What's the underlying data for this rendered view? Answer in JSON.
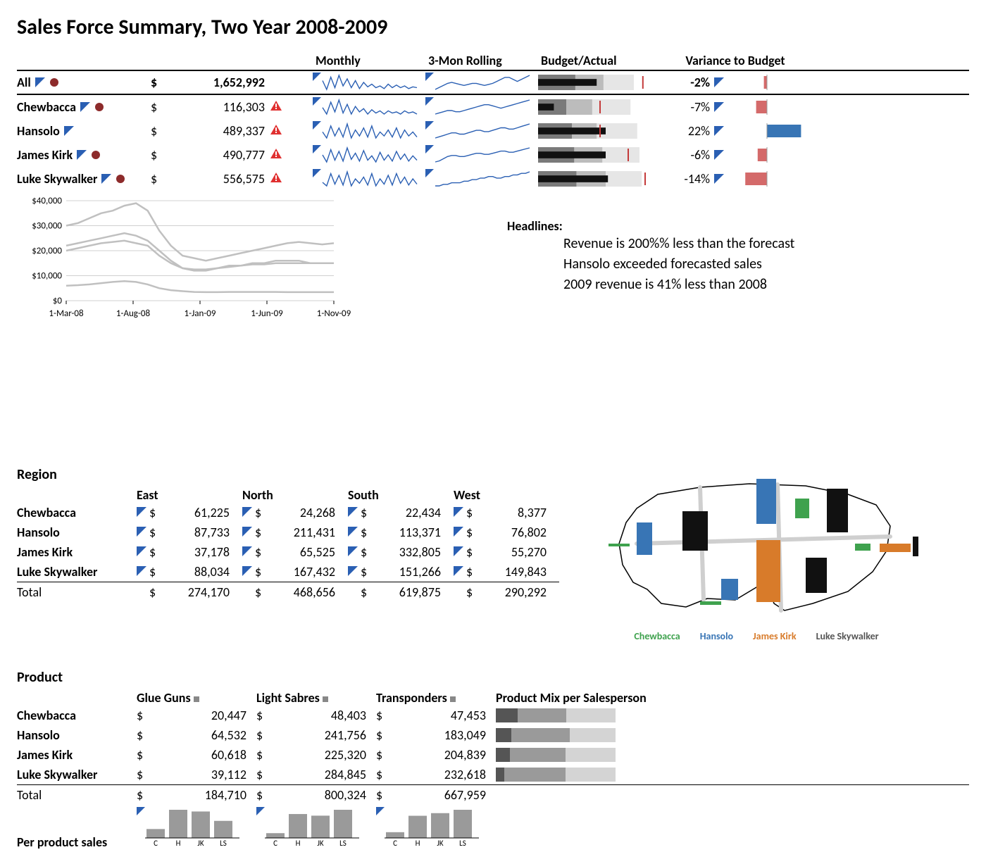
{
  "title": "Sales Force Summary, Two Year 2008-2009",
  "colors": {
    "text": "#000000",
    "bg": "#ffffff",
    "spark_line": "#2a5fb3",
    "spark_tri": "#2a5fb3",
    "warn": "#e03030",
    "bullet_bar": "#111111",
    "bullet_q1": "#7a7a7a",
    "bullet_q2": "#bcbcbc",
    "bullet_q3": "#e6e6e6",
    "bullet_target": "#c43a3a",
    "var_pos": "#3875b5",
    "var_neg": "#d46a6a",
    "line_grid": "#d0d0d0",
    "line_series": "#c0c0c0",
    "mix_dark": "#555555",
    "mix_mid": "#9a9a9a",
    "mix_light": "#d4d4d4",
    "map_chew": "#3fa24e",
    "map_han": "#3875b5",
    "map_jk": "#d87b2a",
    "map_luke": "#111111"
  },
  "summary": {
    "headers": {
      "monthly": "Monthly",
      "rolling": "3-Mon Rolling",
      "budget": "Budget/Actual",
      "variance": "Variance to Budget"
    },
    "rows": [
      {
        "name": "All",
        "amount": "1,652,992",
        "warn": false,
        "show_dot": true,
        "monthly": [
          18,
          8,
          22,
          10,
          24,
          12,
          20,
          10,
          18,
          9,
          16,
          11,
          14,
          10,
          12,
          9,
          14,
          10,
          13,
          10,
          12,
          9,
          11,
          10
        ],
        "rolling": [
          6,
          8,
          10,
          12,
          13,
          12,
          11,
          10,
          11,
          12,
          12,
          11,
          10,
          11,
          12,
          14,
          16,
          18,
          18,
          16,
          14,
          16,
          18,
          20
        ],
        "bullet": {
          "q": [
            0.33,
            0.58,
            0.85
          ],
          "bar": 0.52,
          "target": 0.93
        },
        "variance": -2
      },
      {
        "name": "Chewbacca",
        "amount": "116,303",
        "warn": true,
        "show_dot": true,
        "monthly": [
          15,
          9,
          20,
          11,
          22,
          10,
          18,
          9,
          16,
          11,
          14,
          9,
          13,
          10,
          12,
          9,
          12,
          10,
          11,
          9,
          12,
          10,
          11,
          9
        ],
        "rolling": [
          8,
          9,
          10,
          11,
          11,
          10,
          10,
          11,
          12,
          13,
          14,
          15,
          16,
          16,
          15,
          14,
          13,
          14,
          15,
          16,
          17,
          18,
          19,
          20
        ],
        "bullet": {
          "q": [
            0.25,
            0.48,
            0.82
          ],
          "bar": 0.14,
          "target": 0.55
        },
        "variance": -7
      },
      {
        "name": "Hansolo",
        "amount": "489,337",
        "warn": true,
        "show_dot": false,
        "monthly": [
          16,
          10,
          22,
          12,
          20,
          11,
          24,
          10,
          18,
          12,
          20,
          11,
          22,
          10,
          16,
          12,
          18,
          11,
          20,
          10,
          18,
          12,
          16,
          11
        ],
        "rolling": [
          7,
          8,
          9,
          10,
          11,
          11,
          10,
          10,
          11,
          12,
          13,
          13,
          12,
          12,
          13,
          14,
          15,
          15,
          14,
          14,
          15,
          16,
          17,
          18
        ],
        "bullet": {
          "q": [
            0.3,
            0.52,
            0.88
          ],
          "bar": 0.6,
          "target": 0.55
        },
        "variance": 22
      },
      {
        "name": "James Kirk",
        "amount": "490,777",
        "warn": true,
        "show_dot": true,
        "monthly": [
          17,
          9,
          23,
          11,
          21,
          10,
          25,
          12,
          19,
          10,
          22,
          11,
          16,
          9,
          20,
          11,
          17,
          10,
          21,
          12,
          18,
          10,
          16,
          11
        ],
        "rolling": [
          6,
          7,
          9,
          11,
          12,
          12,
          11,
          11,
          12,
          13,
          14,
          14,
          13,
          13,
          14,
          15,
          16,
          16,
          15,
          15,
          16,
          17,
          18,
          19
        ],
        "bullet": {
          "q": [
            0.32,
            0.57,
            0.9
          ],
          "bar": 0.6,
          "target": 0.8
        },
        "variance": -6
      },
      {
        "name": "Luke Skywalker",
        "amount": "556,575",
        "warn": true,
        "show_dot": true,
        "monthly": [
          14,
          10,
          24,
          12,
          22,
          11,
          26,
          10,
          18,
          13,
          20,
          11,
          24,
          10,
          18,
          12,
          22,
          11,
          24,
          13,
          20,
          11,
          18,
          12
        ],
        "rolling": [
          9,
          9,
          10,
          10,
          11,
          11,
          11,
          12,
          12,
          13,
          13,
          14,
          14,
          15,
          15,
          14,
          14,
          15,
          15,
          16,
          16,
          17,
          17,
          18
        ],
        "bullet": {
          "q": [
            0.34,
            0.6,
            0.92
          ],
          "bar": 0.62,
          "target": 0.95
        },
        "variance": -14
      }
    ]
  },
  "linechart": {
    "yticks": [
      "$40,000",
      "$30,000",
      "$20,000",
      "$10,000",
      "$0"
    ],
    "xticks": [
      "1-Mar-08",
      "1-Aug-08",
      "1-Jan-09",
      "1-Jun-09",
      "1-Nov-09"
    ],
    "ymax": 40000,
    "series": [
      [
        30000,
        31000,
        33000,
        35000,
        36000,
        38000,
        39000,
        36000,
        28000,
        22000,
        18000,
        17000,
        16000,
        17000,
        18000,
        19000,
        20000,
        21000,
        22000,
        23000,
        23500,
        23000,
        22500,
        23000
      ],
      [
        22000,
        23000,
        24000,
        25000,
        26000,
        27000,
        26000,
        24000,
        20000,
        16000,
        13000,
        12000,
        12000,
        13000,
        14000,
        14000,
        15000,
        15000,
        16000,
        16000,
        16000,
        15000,
        15000,
        15000
      ],
      [
        20000,
        21000,
        22000,
        23000,
        23500,
        24000,
        23000,
        22000,
        18000,
        15000,
        13000,
        12500,
        12500,
        13000,
        13500,
        14000,
        14500,
        14500,
        15000,
        15000,
        15000,
        15000,
        15000,
        15000
      ],
      [
        6000,
        6200,
        6500,
        7000,
        7500,
        7800,
        7500,
        6500,
        5000,
        4200,
        3800,
        3500,
        3400,
        3400,
        3500,
        3500,
        3500,
        3500,
        3500,
        3400,
        3400,
        3400,
        3400,
        3400
      ]
    ]
  },
  "headlines": {
    "title": "Headlines:",
    "lines": [
      "Revenue is 200%% less than the forecast",
      "Hansolo exceeded forecasted sales",
      "2009 revenue is 41% less than 2008"
    ]
  },
  "region": {
    "title": "Region",
    "cols": [
      "East",
      "North",
      "South",
      "West"
    ],
    "rows": [
      {
        "name": "Chewbacca",
        "vals": [
          "61,225",
          "24,268",
          "22,434",
          "8,377"
        ]
      },
      {
        "name": "Hansolo",
        "vals": [
          "87,733",
          "211,431",
          "113,371",
          "76,802"
        ]
      },
      {
        "name": "James Kirk",
        "vals": [
          "37,178",
          "65,525",
          "332,805",
          "55,270"
        ]
      },
      {
        "name": "Luke Skywalker",
        "vals": [
          "88,034",
          "167,432",
          "151,266",
          "149,843"
        ]
      }
    ],
    "total": {
      "name": "Total",
      "vals": [
        "274,170",
        "468,656",
        "619,875",
        "290,292"
      ]
    }
  },
  "maplegend": {
    "c": "Chewbacca",
    "h": "Hansolo",
    "j": "James Kirk",
    "l": "Luke Skywalker"
  },
  "product": {
    "title": "Product",
    "cols": [
      "Glue Guns",
      "Light Sabres",
      "Transponders"
    ],
    "mixtitle": "Product Mix per Salesperson",
    "rows": [
      {
        "name": "Chewbacca",
        "vals": [
          "20,447",
          "48,403",
          "47,453"
        ],
        "mix": [
          0.18,
          0.41,
          0.41
        ]
      },
      {
        "name": "Hansolo",
        "vals": [
          "64,532",
          "241,756",
          "183,049"
        ],
        "mix": [
          0.13,
          0.49,
          0.38
        ]
      },
      {
        "name": "James Kirk",
        "vals": [
          "60,618",
          "225,320",
          "204,839"
        ],
        "mix": [
          0.12,
          0.46,
          0.42
        ]
      },
      {
        "name": "Luke Skywalker",
        "vals": [
          "39,112",
          "284,845",
          "232,618"
        ],
        "mix": [
          0.07,
          0.51,
          0.42
        ]
      }
    ],
    "total": {
      "name": "Total",
      "vals": [
        "184,710",
        "800,324",
        "667,959"
      ]
    },
    "perprod_label": "Per product sales",
    "perprod_cats": [
      "C",
      "H",
      "JK",
      "LS"
    ],
    "perprod": [
      [
        20447,
        64532,
        60618,
        39112
      ],
      [
        48403,
        241756,
        225320,
        284845
      ],
      [
        47453,
        183049,
        204839,
        232618
      ]
    ]
  }
}
